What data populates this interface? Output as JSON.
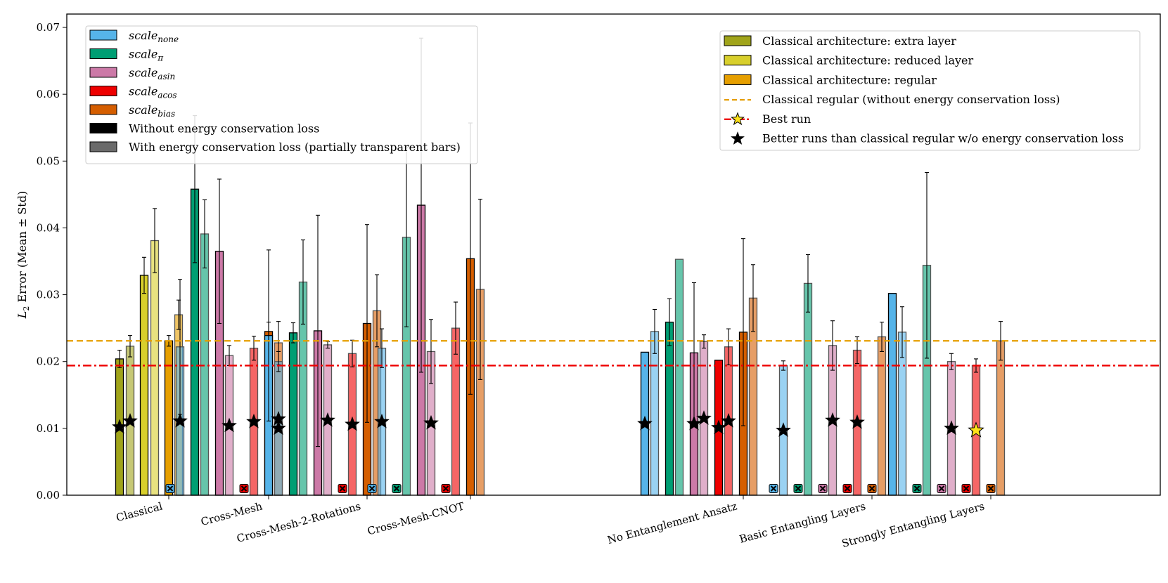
{
  "chart_data": {
    "type": "bar",
    "ylabel": "L₂ Error (Mean ± Std)",
    "ylabel_parts": {
      "L": "L",
      "sub": "2",
      "rest": " Error (Mean ± Std)"
    },
    "ylim": [
      0,
      0.072
    ],
    "yticks": [
      "0.00",
      "0.01",
      "0.02",
      "0.03",
      "0.04",
      "0.05",
      "0.06",
      "0.07"
    ],
    "categories": [
      "Classical",
      "Cross-Mesh",
      "Cross-Mesh-2-Rotations",
      "Cross-Mesh-CNOT",
      "No Entanglement Ansatz",
      "Basic Entangling Layers",
      "Strongly Entangling Layers"
    ],
    "scale_legend": [
      {
        "base": "scale",
        "sub": "none",
        "color": "#56b4e9"
      },
      {
        "base": "scale",
        "sub": "π",
        "color": "#009e73"
      },
      {
        "base": "scale",
        "sub": "asin",
        "color": "#cc79a7"
      },
      {
        "base": "scale",
        "sub": "acos",
        "color": "#ee0000"
      },
      {
        "base": "scale",
        "sub": "bias",
        "color": "#d55e00"
      },
      {
        "label": "Without energy conservation loss",
        "color": "#000000"
      },
      {
        "label": "With energy conservation loss (partially transparent bars)",
        "color": "#6a6a6a"
      }
    ],
    "arch_legend": [
      {
        "label": "Classical architecture: extra layer",
        "kind": "patch",
        "color": "#a0a41a"
      },
      {
        "label": "Classical architecture: reduced layer",
        "kind": "patch",
        "color": "#d8cf2c"
      },
      {
        "label": "Classical architecture: regular",
        "kind": "patch",
        "color": "#e69f00"
      },
      {
        "label": "Classical regular (without energy conservation loss)",
        "kind": "dashed",
        "color": "#e69f00"
      },
      {
        "label": "Best run",
        "kind": "bestrun",
        "color": "#ee0000"
      },
      {
        "label": "Better runs than classical regular w/o energy conservation loss",
        "kind": "star",
        "color": "#000000"
      }
    ],
    "reference_lines": [
      {
        "name": "Classical regular (without energy conservation loss)",
        "value": 0.0231,
        "color": "#e69f00",
        "style": "dashed"
      },
      {
        "name": "Best run",
        "value": 0.0194,
        "color": "#ee0000",
        "style": "dashdot"
      }
    ],
    "colors": {
      "none": "#56b4e9",
      "pi": "#009e73",
      "asin": "#cc79a7",
      "acos": "#ee0000",
      "bias": "#d55e00",
      "extra": "#a0a41a",
      "reduced": "#d8cf2c",
      "regular": "#e69f00"
    },
    "groups": [
      {
        "category": "Classical",
        "bars": [
          {
            "variant": "extra",
            "energy": false,
            "mean": 0.0204,
            "std": 0.0013,
            "star": 0.0102
          },
          {
            "variant": "extra",
            "energy": true,
            "mean": 0.0223,
            "std": 0.0016,
            "star": 0.0111
          },
          {
            "variant": "reduced",
            "energy": false,
            "mean": 0.0329,
            "std": 0.0027
          },
          {
            "variant": "reduced",
            "energy": true,
            "mean": 0.0381,
            "std": 0.0048
          },
          {
            "variant": "regular",
            "energy": false,
            "mean": 0.0231,
            "std": 0.0008
          },
          {
            "variant": "regular",
            "energy": true,
            "mean": 0.027,
            "std": 0.0022
          }
        ]
      },
      {
        "category": "Cross-Mesh",
        "bars": [
          {
            "variant": "none",
            "energy": false,
            "failed": true
          },
          {
            "variant": "none",
            "energy": true,
            "mean": 0.0222,
            "std": 0.0101,
            "star": 0.0111
          },
          {
            "variant": "pi",
            "energy": false,
            "mean": 0.0458,
            "std": 0.011
          },
          {
            "variant": "pi",
            "energy": true,
            "mean": 0.0391,
            "std": 0.0051
          },
          {
            "variant": "asin",
            "energy": false,
            "mean": 0.0365,
            "std": 0.0108
          },
          {
            "variant": "asin",
            "energy": true,
            "mean": 0.0209,
            "std": 0.0015,
            "star": 0.0104
          },
          {
            "variant": "acos",
            "energy": false,
            "failed": true
          },
          {
            "variant": "acos",
            "energy": true,
            "mean": 0.022,
            "std": 0.0018,
            "star": 0.011
          },
          {
            "variant": "bias",
            "energy": false,
            "mean": 0.0245,
            "std": 0.0014
          },
          {
            "variant": "bias",
            "energy": true,
            "mean": 0.0228,
            "std": 0.0032,
            "star": 0.0114
          }
        ]
      },
      {
        "category": "Cross-Mesh-2-Rotations",
        "bars": [
          {
            "variant": "none",
            "energy": false,
            "mean": 0.0239,
            "std": 0.0128
          },
          {
            "variant": "none",
            "energy": true,
            "mean": 0.02,
            "std": 0.0015,
            "star": 0.01
          },
          {
            "variant": "pi",
            "energy": false,
            "mean": 0.0243,
            "std": 0.0015
          },
          {
            "variant": "pi",
            "energy": true,
            "mean": 0.0319,
            "std": 0.0063
          },
          {
            "variant": "asin",
            "energy": false,
            "mean": 0.0246,
            "std": 0.0173
          },
          {
            "variant": "asin",
            "energy": true,
            "mean": 0.0225,
            "std": 0.0005,
            "star": 0.0112
          },
          {
            "variant": "acos",
            "energy": false,
            "failed": true
          },
          {
            "variant": "acos",
            "energy": true,
            "mean": 0.0212,
            "std": 0.002,
            "star": 0.0106
          },
          {
            "variant": "bias",
            "energy": false,
            "mean": 0.0257,
            "std": 0.0148
          },
          {
            "variant": "bias",
            "energy": true,
            "mean": 0.0276,
            "std": 0.0054
          }
        ]
      },
      {
        "category": "Cross-Mesh-CNOT",
        "bars": [
          {
            "variant": "none",
            "energy": false,
            "failed": true
          },
          {
            "variant": "none",
            "energy": true,
            "mean": 0.022,
            "std": 0.0029,
            "star": 0.011
          },
          {
            "variant": "pi",
            "energy": false,
            "failed": true
          },
          {
            "variant": "pi",
            "energy": true,
            "mean": 0.0386,
            "std": 0.0134
          },
          {
            "variant": "asin",
            "energy": false,
            "mean": 0.0434,
            "std": 0.025
          },
          {
            "variant": "asin",
            "energy": true,
            "mean": 0.0215,
            "std": 0.0048,
            "star": 0.0108
          },
          {
            "variant": "acos",
            "energy": false,
            "failed": true
          },
          {
            "variant": "acos",
            "energy": true,
            "mean": 0.025,
            "std": 0.0039
          },
          {
            "variant": "bias",
            "energy": false,
            "mean": 0.0354,
            "std": 0.0203
          },
          {
            "variant": "bias",
            "energy": true,
            "mean": 0.0308,
            "std": 0.0135
          }
        ]
      },
      {
        "category": "No Entanglement Ansatz",
        "bars": [
          {
            "variant": "none",
            "energy": false,
            "mean": 0.0214,
            "std": 0,
            "star": 0.0107
          },
          {
            "variant": "none",
            "energy": true,
            "mean": 0.0245,
            "std": 0.0033
          },
          {
            "variant": "pi",
            "energy": false,
            "mean": 0.0259,
            "std": 0.0035
          },
          {
            "variant": "pi",
            "energy": true,
            "mean": 0.0353,
            "std": 0
          },
          {
            "variant": "asin",
            "energy": false,
            "mean": 0.0213,
            "std": 0.0105,
            "star": 0.0107
          },
          {
            "variant": "asin",
            "energy": true,
            "mean": 0.023,
            "std": 0.001,
            "star": 0.0115
          },
          {
            "variant": "acos",
            "energy": false,
            "mean": 0.0202,
            "std": 0,
            "star": 0.0101
          },
          {
            "variant": "acos",
            "energy": true,
            "mean": 0.0222,
            "std": 0.0027,
            "star": 0.0111
          },
          {
            "variant": "bias",
            "energy": false,
            "mean": 0.0244,
            "std": 0.014
          },
          {
            "variant": "bias",
            "energy": true,
            "mean": 0.0295,
            "std": 0.005
          }
        ]
      },
      {
        "category": "Basic Entangling Layers",
        "bars": [
          {
            "variant": "none",
            "energy": false,
            "failed": true
          },
          {
            "variant": "none",
            "energy": true,
            "mean": 0.0194,
            "std": 0.0007,
            "star": 0.0097
          },
          {
            "variant": "pi",
            "energy": false,
            "failed": true
          },
          {
            "variant": "pi",
            "energy": true,
            "mean": 0.0317,
            "std": 0.0043
          },
          {
            "variant": "asin",
            "energy": false,
            "failed": true
          },
          {
            "variant": "asin",
            "energy": true,
            "mean": 0.0224,
            "std": 0.0037,
            "star": 0.0112
          },
          {
            "variant": "acos",
            "energy": false,
            "failed": true
          },
          {
            "variant": "acos",
            "energy": true,
            "mean": 0.0217,
            "std": 0.002,
            "star": 0.0109
          },
          {
            "variant": "bias",
            "energy": false,
            "failed": true
          },
          {
            "variant": "bias",
            "energy": true,
            "mean": 0.0237,
            "std": 0.0022
          }
        ]
      },
      {
        "category": "Strongly Entangling Layers",
        "bars": [
          {
            "variant": "none",
            "energy": false,
            "mean": 0.0302,
            "std": 0
          },
          {
            "variant": "none",
            "energy": true,
            "mean": 0.0244,
            "std": 0.0038
          },
          {
            "variant": "pi",
            "energy": false,
            "failed": true
          },
          {
            "variant": "pi",
            "energy": true,
            "mean": 0.0344,
            "std": 0.0139
          },
          {
            "variant": "asin",
            "energy": false,
            "failed": true
          },
          {
            "variant": "asin",
            "energy": true,
            "mean": 0.02,
            "std": 0.0012,
            "star": 0.01
          },
          {
            "variant": "acos",
            "energy": false,
            "failed": true
          },
          {
            "variant": "acos",
            "energy": true,
            "mean": 0.0194,
            "std": 0.001,
            "star": 0.0097,
            "best": true
          },
          {
            "variant": "bias",
            "energy": false,
            "failed": true
          },
          {
            "variant": "bias",
            "energy": true,
            "mean": 0.0231,
            "std": 0.0029
          }
        ]
      }
    ]
  }
}
